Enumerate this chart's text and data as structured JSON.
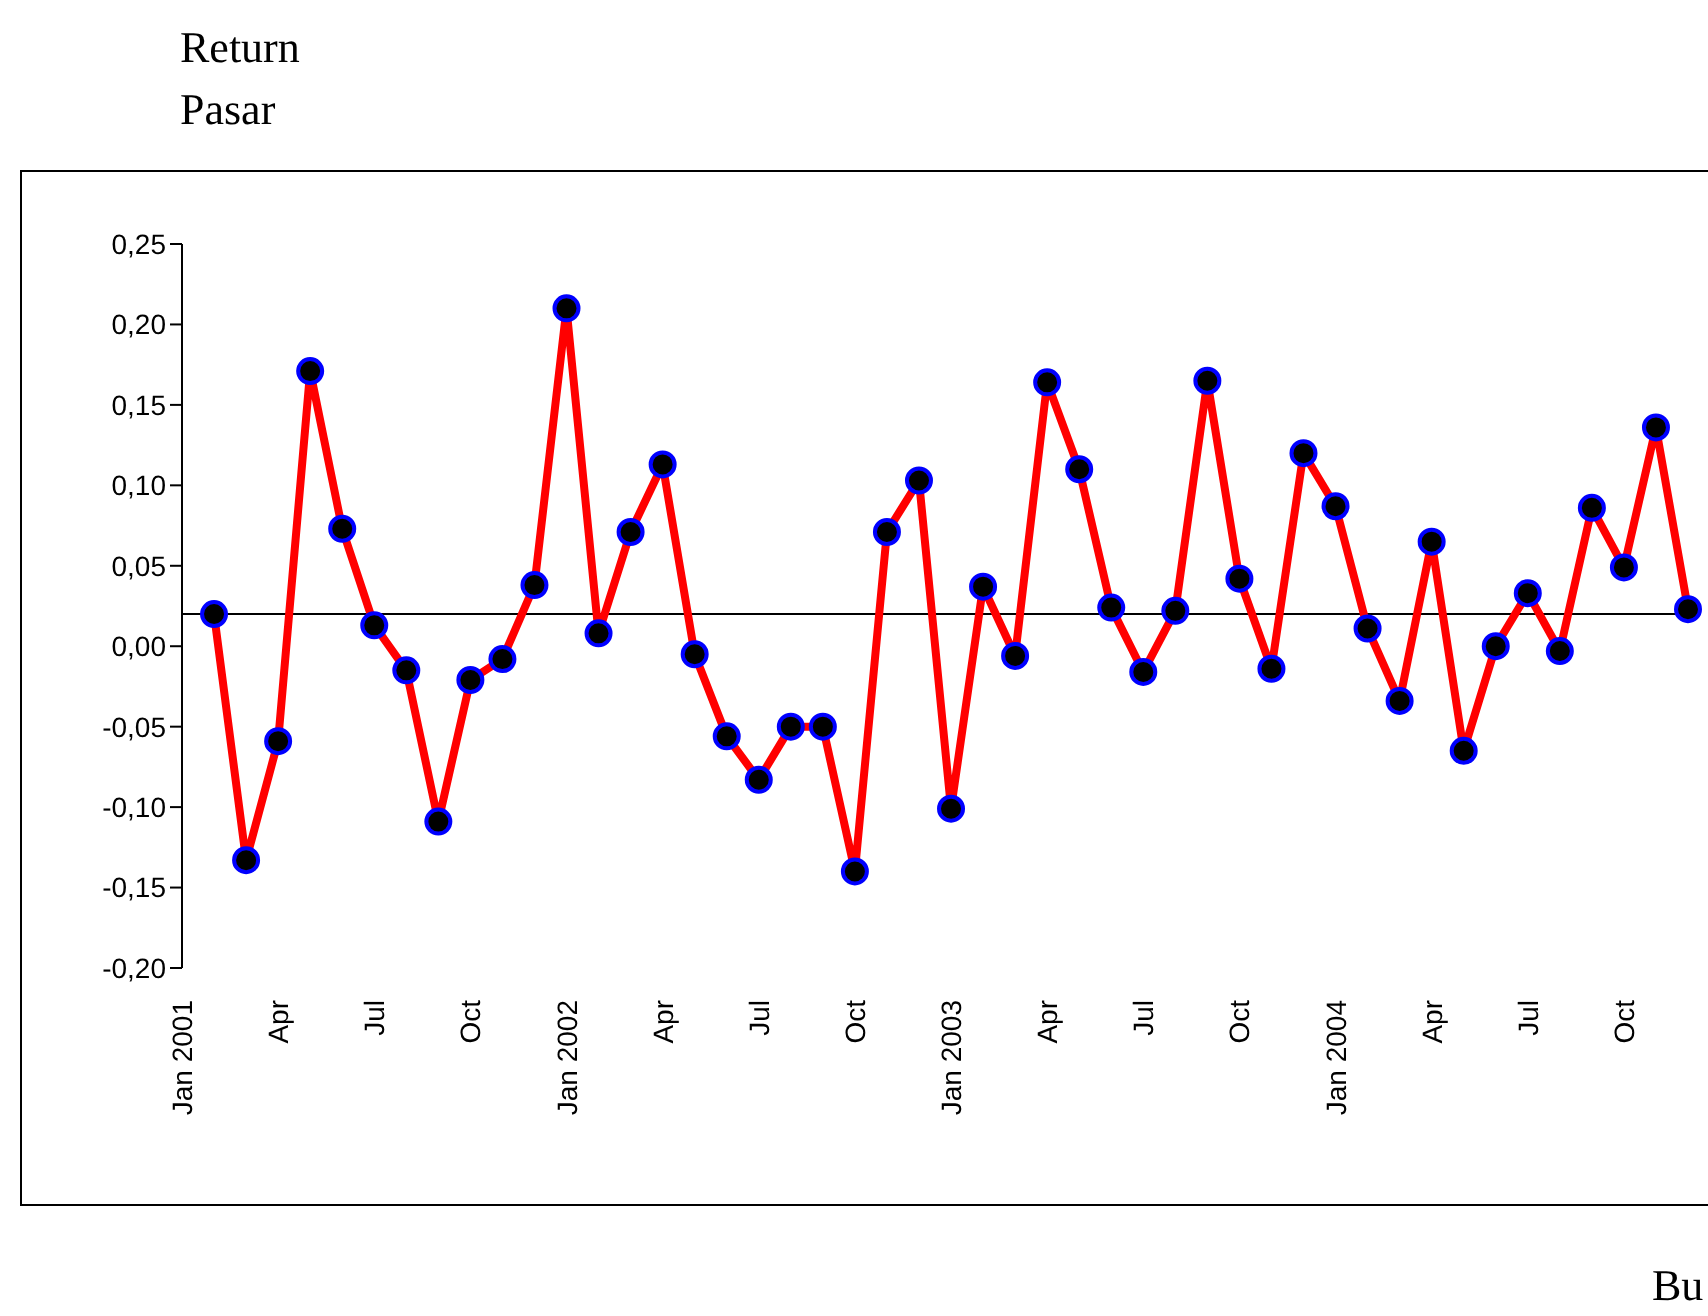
{
  "chart_data": {
    "type": "line",
    "ylabel": "Return Pasar",
    "xlabel": "Bu",
    "categories": [
      "Jan 2001",
      null,
      null,
      "Apr",
      null,
      null,
      "Jul",
      null,
      null,
      "Oct",
      null,
      null,
      "Jan 2002",
      null,
      null,
      "Apr",
      null,
      null,
      "Jul",
      null,
      null,
      "Oct",
      null,
      null,
      "Jan 2003",
      null,
      null,
      "Apr",
      null,
      null,
      "Jul",
      null,
      null,
      "Oct",
      null,
      null,
      "Jan 2004",
      null,
      null,
      "Apr",
      null,
      null,
      "Jul",
      null,
      null,
      "Oct",
      null,
      null
    ],
    "series": [
      {
        "color": "#ff0000",
        "values": [
          null,
          0.02,
          -0.133,
          -0.059,
          0.171,
          0.073,
          0.013,
          -0.015,
          -0.109,
          -0.021,
          -0.008,
          0.038,
          0.21,
          0.008,
          0.071,
          0.113,
          -0.005,
          -0.056,
          -0.083,
          -0.05,
          -0.05,
          -0.14,
          0.071,
          0.103,
          -0.101,
          0.037,
          -0.006,
          0.164,
          0.11,
          0.024,
          -0.016,
          0.022,
          0.165,
          0.042,
          -0.014,
          0.12,
          0.087,
          0.011,
          -0.034,
          0.065,
          -0.065,
          0.0,
          0.033,
          -0.003,
          0.086,
          0.049,
          0.136,
          0.023
        ]
      }
    ],
    "ylim": [
      -0.2,
      0.25
    ],
    "yticks": [
      {
        "value": -0.2,
        "label": "-0,20"
      },
      {
        "value": -0.15,
        "label": "-0,15"
      },
      {
        "value": -0.1,
        "label": "-0,10"
      },
      {
        "value": -0.05,
        "label": "-0,05"
      },
      {
        "value": 0,
        "label": "0,00"
      },
      {
        "value": 0.05,
        "label": "0,05"
      },
      {
        "value": 0.1,
        "label": "0,10"
      },
      {
        "value": 0.15,
        "label": "0,15"
      },
      {
        "value": 0.2,
        "label": "0,20"
      },
      {
        "value": 0.25,
        "label": "0,25"
      }
    ],
    "ref_lines": [
      {
        "axis": "y",
        "value": 0.02,
        "color": "#000000"
      }
    ],
    "marker": "circle",
    "grid": false,
    "legend": false
  }
}
